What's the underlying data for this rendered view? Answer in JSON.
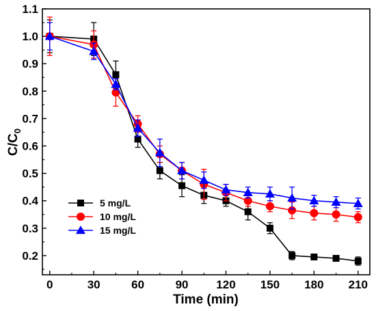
{
  "chart_data": {
    "type": "line",
    "xlabel": "Time (min)",
    "ylabel_main": "C/C",
    "ylabel_sub": "0",
    "xlim": [
      -5,
      218
    ],
    "ylim": [
      0.13,
      1.1
    ],
    "xticks": [
      0,
      30,
      60,
      90,
      120,
      150,
      180,
      210
    ],
    "yticks": [
      0.2,
      0.3,
      0.4,
      0.5,
      0.6,
      0.7,
      0.8,
      0.9,
      1.0,
      1.1
    ],
    "ytick_labels": [
      "0.2",
      "0.3",
      "0.4",
      "0.5",
      "0.6",
      "0.7",
      "0.8",
      "0.9",
      "1.0",
      "1.1"
    ],
    "legend_position": "lower-left",
    "series": [
      {
        "name": "5 mg/L",
        "color": "#000000",
        "marker": "square",
        "x": [
          0,
          30,
          45,
          60,
          75,
          90,
          105,
          120,
          135,
          150,
          165,
          180,
          195,
          210
        ],
        "y": [
          1.0,
          0.99,
          0.86,
          0.625,
          0.51,
          0.455,
          0.42,
          0.4,
          0.36,
          0.3,
          0.2,
          0.195,
          0.19,
          0.18
        ],
        "err": [
          0.06,
          0.06,
          0.05,
          0.03,
          0.03,
          0.04,
          0.03,
          0.02,
          0.03,
          0.02,
          0.015,
          0.01,
          0.01,
          0.015
        ]
      },
      {
        "name": "10 mg/L",
        "color": "#ff0000",
        "marker": "circle",
        "x": [
          0,
          30,
          45,
          60,
          75,
          90,
          105,
          120,
          135,
          150,
          165,
          180,
          195,
          210
        ],
        "y": [
          1.0,
          0.97,
          0.795,
          0.68,
          0.57,
          0.51,
          0.46,
          0.43,
          0.4,
          0.38,
          0.365,
          0.355,
          0.35,
          0.34
        ],
        "err": [
          0.07,
          0.05,
          0.05,
          0.03,
          0.03,
          0.03,
          0.055,
          0.03,
          0.02,
          0.02,
          0.03,
          0.025,
          0.025,
          0.02
        ]
      },
      {
        "name": "15 mg/L",
        "color": "#0000ff",
        "marker": "triangle",
        "x": [
          0,
          30,
          45,
          60,
          75,
          90,
          105,
          120,
          135,
          150,
          165,
          180,
          195,
          210
        ],
        "y": [
          1.0,
          0.945,
          0.825,
          0.665,
          0.575,
          0.51,
          0.475,
          0.44,
          0.43,
          0.425,
          0.41,
          0.4,
          0.395,
          0.39
        ],
        "err": [
          0.05,
          0.03,
          0.02,
          0.03,
          0.05,
          0.03,
          0.03,
          0.02,
          0.02,
          0.025,
          0.04,
          0.02,
          0.02,
          0.02
        ]
      }
    ]
  }
}
